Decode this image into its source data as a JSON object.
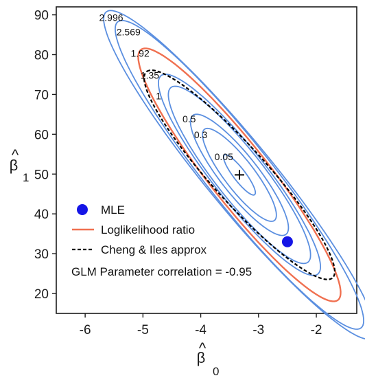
{
  "chart_data": {
    "type": "contour",
    "title": "",
    "xlabel": {
      "main": "β",
      "accent": "^",
      "sub": "0"
    },
    "ylabel": {
      "main": "β",
      "accent": "^",
      "sub": "1"
    },
    "xlim": [
      -6.5,
      -1.3
    ],
    "ylim": [
      15,
      92
    ],
    "xticks": [
      -6,
      -5,
      -4,
      -3,
      -2
    ],
    "yticks": [
      20,
      30,
      40,
      50,
      60,
      70,
      80,
      90
    ],
    "grid": false,
    "center": {
      "x": -3.33,
      "y": 49.8,
      "marker": "+"
    },
    "mle_point": {
      "x": -2.5,
      "y": 33.0
    },
    "correlation": -0.95,
    "contours": [
      {
        "level": "0.05",
        "a": [
          -0.26,
          5.0
        ],
        "b": [
          0.09,
          0.8
        ],
        "label_pos": [
          -3.6,
          53.5
        ],
        "color": "#5b8fe0"
      },
      {
        "level": "0.3",
        "a": [
          -0.6,
          11.5
        ],
        "b": [
          0.22,
          2.0
        ],
        "label_pos": [
          -4.0,
          59.0
        ],
        "color": "#5b8fe0"
      },
      {
        "level": "0.5",
        "a": [
          -0.8,
          15.0
        ],
        "b": [
          0.28,
          2.6
        ],
        "label_pos": [
          -4.2,
          63.0
        ],
        "color": "#5b8fe0"
      },
      {
        "level": "1",
        "a": [
          -1.18,
          22.0
        ],
        "b": [
          0.35,
          3.4
        ],
        "label_pos": [
          -4.73,
          68.8
        ],
        "color": "#5b8fe0"
      },
      {
        "level": "1.35",
        "a": [
          -1.35,
          25.0
        ],
        "b": [
          0.38,
          3.7
        ],
        "label_pos": [
          -4.88,
          74.0
        ],
        "color": "#5b8fe0"
      },
      {
        "level": "1.92",
        "a": [
          -1.7,
          31.5
        ],
        "b": [
          0.42,
          4.2
        ],
        "label_pos": [
          -5.05,
          79.5
        ],
        "color": "#f07050"
      },
      {
        "level": "2.569",
        "a": [
          -2.1,
          38.5
        ],
        "b": [
          0.46,
          4.6
        ],
        "label_pos": [
          -5.25,
          84.8
        ],
        "color": "#5b8fe0"
      },
      {
        "level": "2.996",
        "a": [
          -2.3,
          41.0
        ],
        "b": [
          0.48,
          4.8
        ],
        "label_pos": [
          -5.55,
          88.5
        ],
        "color": "#5b8fe0"
      }
    ],
    "approx_ellipse": {
      "a": [
        -1.6,
        26.0
      ],
      "b": [
        0.4,
        3.9
      ],
      "color": "#000000"
    },
    "legend": {
      "items": [
        {
          "label": "MLE",
          "kind": "dot",
          "color": "#1515e6"
        },
        {
          "label": "Loglikelihood ratio",
          "kind": "line",
          "color": "#f07050"
        },
        {
          "label": "Cheng & Iles approx",
          "kind": "dashed",
          "color": "#000000"
        }
      ],
      "correlation_text": "GLM Parameter correlation  =  -0.95"
    }
  }
}
